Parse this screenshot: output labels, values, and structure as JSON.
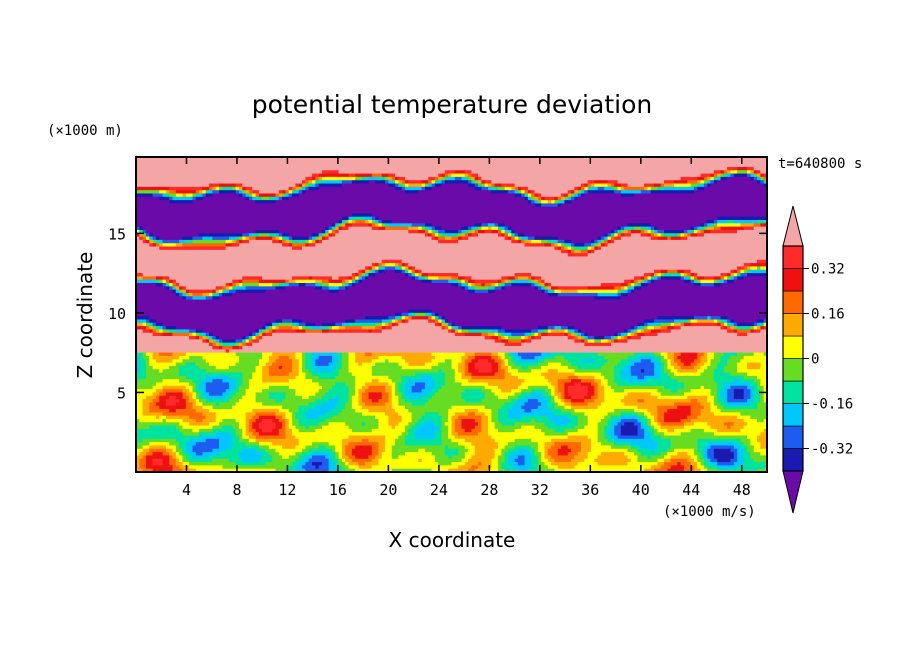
{
  "chart_data": {
    "type": "heatmap",
    "title": "potential temperature deviation",
    "xlabel": "X coordinate",
    "ylabel": "Z coordinate",
    "x_unit": "(×1000 m/s)",
    "y_unit": "(×1000 m)",
    "time_label": "t=640800 s",
    "xlim": [
      0,
      50
    ],
    "ylim": [
      0,
      19.8
    ],
    "xticks": [
      4,
      8,
      12,
      16,
      20,
      24,
      28,
      32,
      36,
      40,
      44,
      48
    ],
    "yticks": [
      5,
      10,
      15
    ],
    "colorbar": {
      "levels": [
        -0.4,
        -0.32,
        -0.24,
        -0.16,
        -0.08,
        0,
        0.08,
        0.16,
        0.24,
        0.32,
        0.4
      ],
      "colors": [
        "#6a0aa8",
        "#1a1ab0",
        "#1e5cf0",
        "#00c8ff",
        "#00e2a0",
        "#66dd22",
        "#ffff00",
        "#ffaa00",
        "#ff6a00",
        "#ee1111",
        "#ff2a2a",
        "#f4a6a6"
      ],
      "tick_labels": [
        "0.32",
        "0.16",
        "0",
        "-0.16",
        "-0.32"
      ],
      "tick_values": [
        0.32,
        0.16,
        0,
        -0.16,
        -0.32
      ],
      "extend": "both"
    },
    "field_summary": [
      {
        "region": "upper layer (z > 7.5)",
        "pattern": "alternating bands of strong positive and strong negative deviation"
      },
      {
        "region": "lower layer (z < 7.5)",
        "pattern": "turbulent eddies ranging from about -0.3 to 0.3"
      }
    ]
  }
}
